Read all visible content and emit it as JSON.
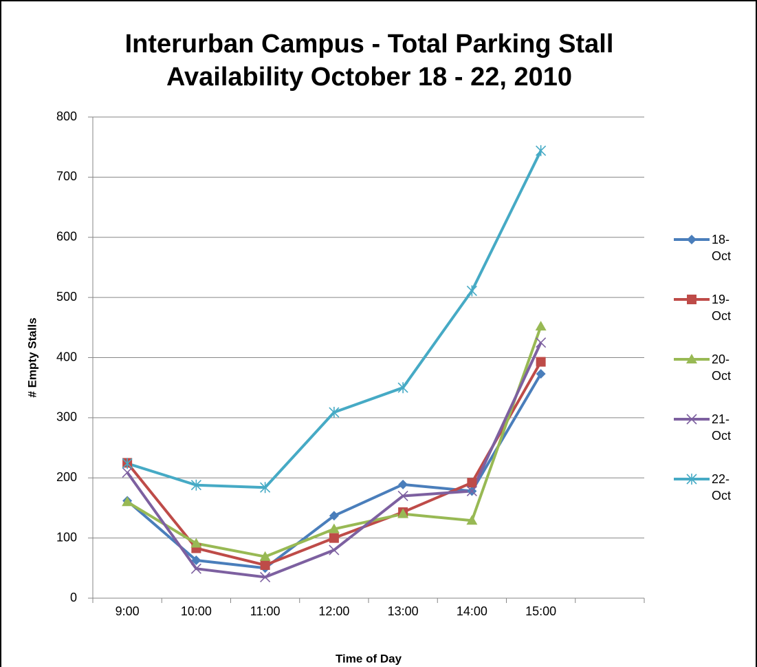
{
  "chart_data": {
    "type": "line",
    "title": "Interurban Campus - Total Parking Stall Availability October 18 - 22, 2010",
    "xlabel": "Time of Day",
    "ylabel": "# Empty Stalls",
    "categories": [
      "9:00",
      "10:00",
      "11:00",
      "12:00",
      "13:00",
      "14:00",
      "15:00",
      null
    ],
    "series": [
      {
        "name": "18-Oct",
        "color": "#4a7ebb",
        "marker": "diamond",
        "values": [
          162,
          63,
          50,
          137,
          189,
          178,
          373,
          null
        ]
      },
      {
        "name": "19-Oct",
        "color": "#be4b48",
        "marker": "square",
        "values": [
          225,
          83,
          55,
          100,
          143,
          192,
          393,
          null
        ]
      },
      {
        "name": "20-Oct",
        "color": "#98b954",
        "marker": "triangle",
        "values": [
          160,
          91,
          69,
          115,
          140,
          129,
          452,
          null
        ]
      },
      {
        "name": "21-Oct",
        "color": "#7d60a0",
        "marker": "x",
        "values": [
          209,
          49,
          35,
          80,
          170,
          178,
          425,
          null
        ]
      },
      {
        "name": "22-Oct",
        "color": "#46aac5",
        "marker": "asterisk",
        "values": [
          224,
          188,
          184,
          309,
          350,
          511,
          744,
          null
        ]
      }
    ],
    "ylim": [
      0,
      800
    ],
    "yticks": [
      0,
      100,
      200,
      300,
      400,
      500,
      600,
      700,
      800
    ],
    "grid": true,
    "legend": "right"
  }
}
